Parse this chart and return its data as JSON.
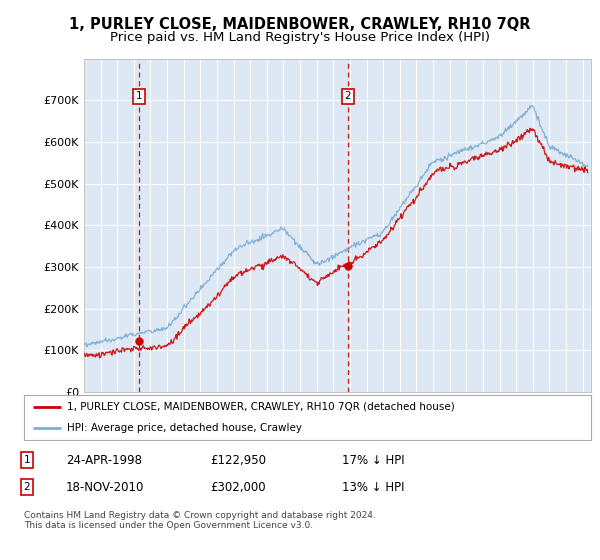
{
  "title": "1, PURLEY CLOSE, MAIDENBOWER, CRAWLEY, RH10 7QR",
  "subtitle": "Price paid vs. HM Land Registry's House Price Index (HPI)",
  "ylim": [
    0,
    800000
  ],
  "yticks": [
    0,
    100000,
    200000,
    300000,
    400000,
    500000,
    600000,
    700000
  ],
  "ytick_labels": [
    "£0",
    "£100K",
    "£200K",
    "£300K",
    "£400K",
    "£500K",
    "£600K",
    "£700K"
  ],
  "xlim_start": 1995,
  "xlim_end": 2025.5,
  "background_color": "#dde8f4",
  "grid_color": "#ffffff",
  "hpi_color": "#7aadd4",
  "price_color": "#cc0000",
  "sale1_x": 1998.29,
  "sale1_y": 122950,
  "sale1_date": "24-APR-1998",
  "sale1_price": 122950,
  "sale1_hpi_note": "17% ↓ HPI",
  "sale2_x": 2010.88,
  "sale2_y": 302000,
  "sale2_date": "18-NOV-2010",
  "sale2_price": 302000,
  "sale2_hpi_note": "13% ↓ HPI",
  "legend_label1": "1, PURLEY CLOSE, MAIDENBOWER, CRAWLEY, RH10 7QR (detached house)",
  "legend_label2": "HPI: Average price, detached house, Crawley",
  "footer": "Contains HM Land Registry data © Crown copyright and database right 2024.\nThis data is licensed under the Open Government Licence v3.0.",
  "title_fontsize": 10.5,
  "subtitle_fontsize": 9.5
}
